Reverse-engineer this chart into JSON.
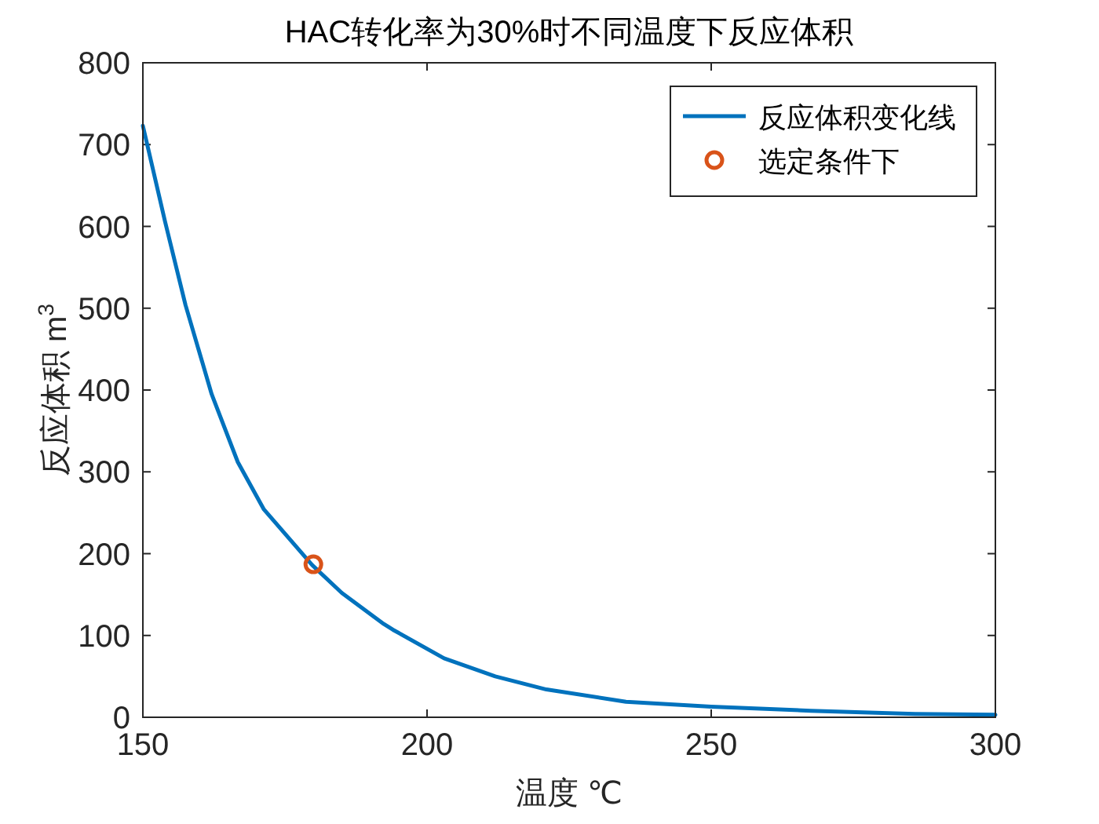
{
  "chart_data": {
    "type": "line",
    "title": "HAC转化率为30%时不同温度下反应体积",
    "xlabel": "温度 ℃",
    "ylabel": "反应体积 m$^{3}$",
    "xlim": [
      150,
      300
    ],
    "xticks": [
      150,
      200,
      250,
      300
    ],
    "ylim": [
      0,
      800
    ],
    "yticks": [
      0,
      100,
      200,
      300,
      400,
      500,
      600,
      700,
      800
    ],
    "legend": "top right",
    "series": [
      {
        "name": "反应体积变化线",
        "color": "#0072bd",
        "line_style": "solid",
        "marker": "none",
        "x": [
          150,
          153.9,
          157.5,
          162.1,
          166.7,
          171.3,
          179.8,
          185,
          192.4,
          194,
          203,
          212,
          221,
          235,
          250,
          267.5,
          285.8,
          300
        ],
        "values": [
          723,
          606,
          504,
          395,
          312,
          254,
          186,
          152,
          114,
          107,
          72,
          50,
          34,
          19,
          13,
          8,
          4,
          3
        ]
      },
      {
        "name": "选定条件下",
        "type": "scatter",
        "color": "#d95319",
        "marker": "circle",
        "x": [
          180
        ],
        "values": [
          187
        ]
      }
    ]
  }
}
